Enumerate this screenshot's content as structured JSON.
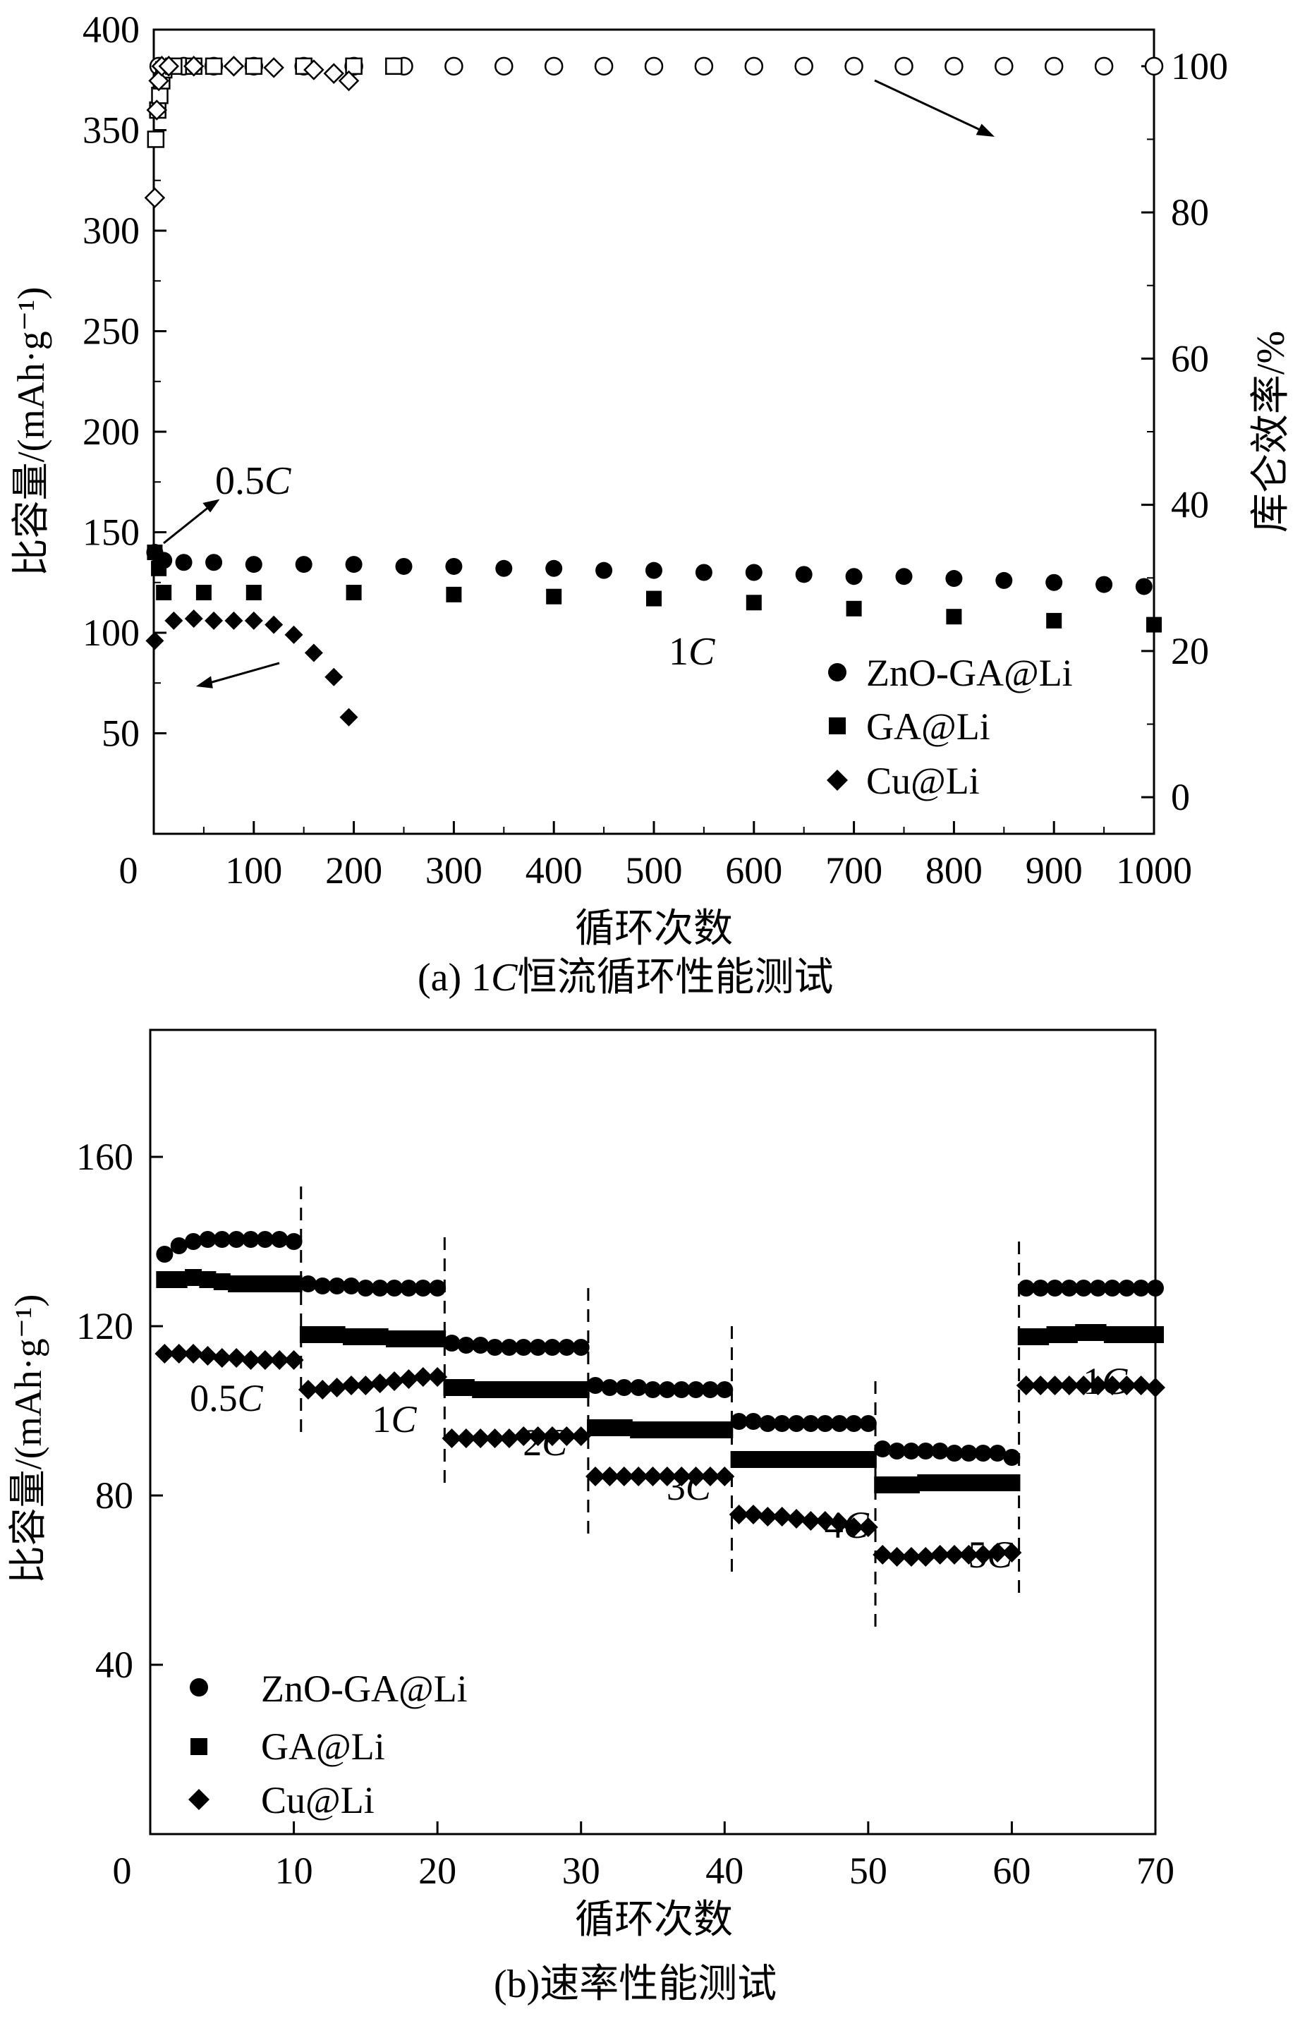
{
  "chart_data": [
    {
      "type": "scatter",
      "caption": "(a) 1C恒流循环性能测试",
      "xlabel": "循环次数",
      "ylabel": "比容量/(mAh·g⁻¹)",
      "y2label": "库仑效率/%",
      "xlim": [
        0,
        1000
      ],
      "ylim": [
        0,
        400
      ],
      "y2lim": [
        -5,
        105
      ],
      "xticks": [
        0,
        100,
        200,
        300,
        400,
        500,
        600,
        700,
        800,
        900,
        1000
      ],
      "yticks": [
        50,
        100,
        150,
        200,
        250,
        300,
        350,
        400
      ],
      "y2ticks": [
        0,
        20,
        40,
        60,
        80,
        100
      ],
      "legend_position": "bottom-right",
      "legend": [
        "ZnO-GA@Li",
        "GA@Li",
        "Cu@Li"
      ],
      "annotations": [
        "0.5C",
        "1C"
      ],
      "series": [
        {
          "name": "ZnO-GA@Li",
          "marker": "circle",
          "axis": "capacity",
          "x": [
            1,
            10,
            30,
            60,
            100,
            150,
            200,
            250,
            300,
            350,
            400,
            450,
            500,
            550,
            600,
            650,
            700,
            750,
            800,
            850,
            900,
            950,
            990
          ],
          "y": [
            140,
            136,
            135,
            135,
            134,
            134,
            134,
            133,
            133,
            132,
            132,
            131,
            131,
            130,
            130,
            129,
            128,
            128,
            127,
            126,
            125,
            124,
            123
          ]
        },
        {
          "name": "GA@Li",
          "marker": "square",
          "axis": "capacity",
          "x": [
            1,
            5,
            10,
            50,
            100,
            200,
            300,
            400,
            500,
            600,
            700,
            800,
            900,
            1000
          ],
          "y": [
            140,
            132,
            120,
            120,
            120,
            120,
            119,
            118,
            117,
            115,
            112,
            108,
            106,
            104
          ]
        },
        {
          "name": "Cu@Li",
          "marker": "diamond",
          "axis": "capacity",
          "x": [
            1,
            20,
            40,
            60,
            80,
            100,
            120,
            140,
            160,
            180,
            195
          ],
          "y": [
            96,
            106,
            107,
            106,
            106,
            106,
            104,
            99,
            90,
            78,
            58
          ]
        },
        {
          "name": "ZnO-GA@Li",
          "marker": "circle-open",
          "axis": "efficiency",
          "x": [
            5,
            30,
            60,
            100,
            150,
            200,
            250,
            300,
            350,
            400,
            450,
            500,
            550,
            600,
            650,
            700,
            750,
            800,
            850,
            900,
            950,
            1000
          ],
          "y": [
            100,
            100,
            100,
            100,
            100,
            100,
            100,
            100,
            100,
            100,
            100,
            100,
            100,
            100,
            100,
            100,
            100,
            100,
            100,
            100,
            100,
            100
          ]
        },
        {
          "name": "GA@Li",
          "marker": "square-open",
          "axis": "efficiency",
          "x": [
            2,
            4,
            6,
            8,
            10,
            20,
            40,
            60,
            100,
            150,
            200,
            240
          ],
          "y": [
            90,
            94,
            96,
            98,
            99.5,
            100,
            100,
            100,
            100,
            100,
            100,
            100
          ]
        },
        {
          "name": "Cu@Li",
          "marker": "diamond-open",
          "axis": "efficiency",
          "x": [
            1,
            3,
            5,
            8,
            15,
            40,
            80,
            120,
            160,
            180,
            195
          ],
          "y": [
            82,
            94,
            98,
            100,
            100,
            100,
            100,
            99.8,
            99.5,
            99,
            98
          ]
        }
      ]
    },
    {
      "type": "scatter",
      "caption": "(b)速率性能测试",
      "xlabel": "循环次数",
      "ylabel": "比容量/(mAh·g⁻¹)",
      "xlim": [
        0,
        70
      ],
      "ylim": [
        0,
        190
      ],
      "xticks": [
        0,
        10,
        20,
        30,
        40,
        50,
        60,
        70
      ],
      "yticks": [
        40,
        80,
        120,
        160
      ],
      "legend_position": "bottom-left",
      "legend": [
        "ZnO-GA@Li",
        "GA@Li",
        "Cu@Li"
      ],
      "rate_labels": [
        "0.5C",
        "1C",
        "2C",
        "3C",
        "4C",
        "5C",
        "1C"
      ],
      "series": [
        {
          "name": "ZnO-GA@Li",
          "marker": "circle",
          "segments": [
            [
              137,
              139,
              140,
              140.5,
              140.5,
              140.5,
              140.5,
              140.5,
              140.5,
              140
            ],
            [
              130,
              129.5,
              129.5,
              129.5,
              129,
              129,
              129,
              129,
              129,
              129
            ],
            [
              116,
              115.5,
              115.5,
              115,
              115,
              115,
              115,
              115,
              115,
              115
            ],
            [
              106,
              105.5,
              105.5,
              105.5,
              105,
              105,
              105,
              105,
              105,
              105
            ],
            [
              97.5,
              97.5,
              97,
              97,
              97,
              97,
              97,
              97,
              97,
              97
            ],
            [
              91,
              90.5,
              90.5,
              90.5,
              90.5,
              90,
              90,
              90,
              90,
              89
            ],
            [
              129,
              129,
              129,
              129,
              129,
              129,
              129,
              129,
              129,
              129
            ]
          ]
        },
        {
          "name": "GA@Li",
          "marker": "square",
          "segments": [
            [
              131,
              131,
              131.5,
              131,
              130.5,
              130,
              130,
              130,
              130,
              130
            ],
            [
              118,
              118,
              118,
              117.5,
              117.5,
              117.5,
              117,
              117,
              117,
              117
            ],
            [
              105.5,
              105.5,
              105,
              105,
              105,
              105,
              105,
              105,
              105,
              105
            ],
            [
              96,
              96,
              96,
              95.5,
              95.5,
              95.5,
              95.5,
              95.5,
              95.5,
              95.5
            ],
            [
              88.5,
              88.5,
              88.5,
              88.5,
              88.5,
              88.5,
              88.5,
              88.5,
              88.5,
              88.5
            ],
            [
              82.5,
              82.5,
              82.5,
              83,
              83,
              83,
              83,
              83,
              83,
              83
            ],
            [
              117.5,
              117.5,
              118,
              118,
              118.5,
              118.5,
              118,
              118,
              118,
              118
            ]
          ]
        },
        {
          "name": "Cu@Li",
          "marker": "diamond",
          "segments": [
            [
              113.5,
              113.5,
              113.5,
              113,
              112.5,
              112.5,
              112,
              112,
              112,
              112
            ],
            [
              105,
              105,
              105.5,
              106,
              106,
              106.5,
              107,
              107.5,
              108,
              108
            ],
            [
              93.5,
              93.5,
              93.5,
              93.5,
              93.5,
              94,
              94,
              94,
              94,
              94
            ],
            [
              84.5,
              84.5,
              84.5,
              84.5,
              84.5,
              84.5,
              84.5,
              84.5,
              84.5,
              84.5
            ],
            [
              75.5,
              75.5,
              75,
              75,
              74.5,
              74,
              74,
              73.5,
              72.5,
              72.5
            ],
            [
              66,
              65.5,
              65.5,
              65.5,
              66,
              66,
              66,
              66,
              66.5,
              66.5
            ],
            [
              106,
              106,
              106,
              106,
              106,
              106,
              106,
              106,
              106,
              105.5
            ]
          ]
        }
      ]
    }
  ]
}
